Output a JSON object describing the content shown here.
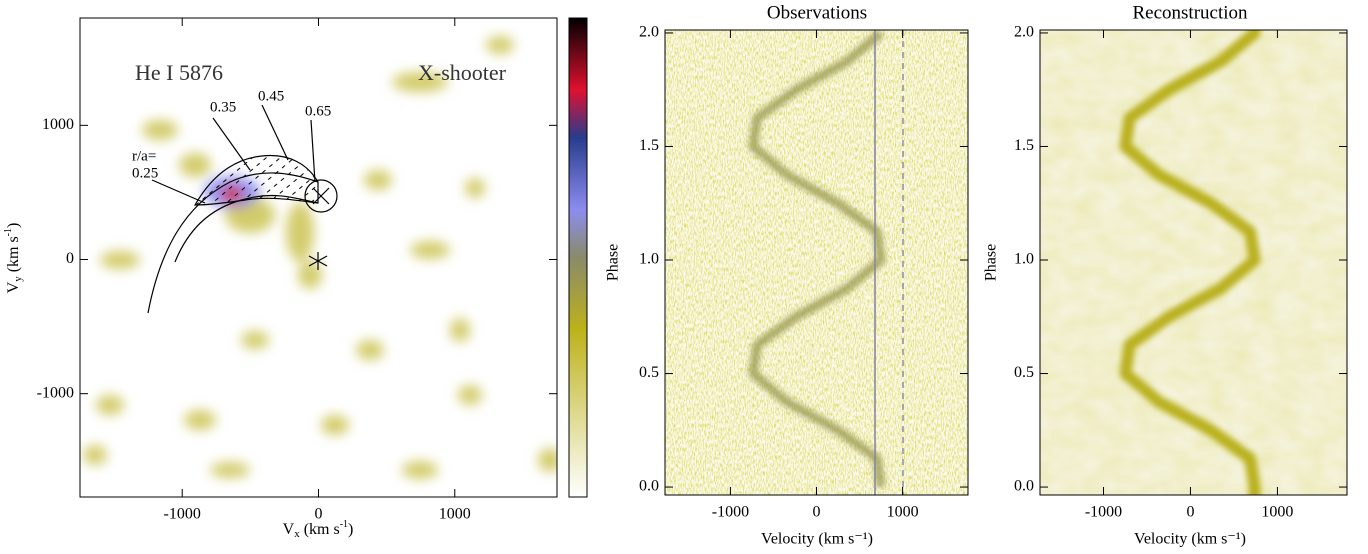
{
  "chart_data": [
    {
      "type": "heatmap",
      "annotations": [
        "He I 5876",
        "X-shooter",
        "r/a=",
        "0.25",
        "0.35",
        "0.45",
        "0.65"
      ],
      "xlabel": {
        "text": "V",
        "sub": "x",
        "unit": " (km s",
        "sup": "-1",
        "end": ")"
      },
      "ylabel": {
        "text": "V",
        "sub": "y",
        "unit": " (km s",
        "sup": "-1",
        "end": ")"
      },
      "xlim": [
        -1750,
        1750
      ],
      "ylim": [
        -1770,
        1800
      ],
      "xticks": [
        -1000,
        0,
        1000
      ],
      "yticks": [
        -1000,
        0,
        1000
      ]
    },
    {
      "type": "heatmap",
      "title": "Observations",
      "xlabel": "Velocity (km s⁻¹)",
      "ylabel": "Phase",
      "xlim": [
        -1760,
        1760
      ],
      "ylim": [
        -0.035,
        2.013
      ],
      "xticks": [
        -1000,
        0,
        1000
      ],
      "yticks": [
        {
          "value": 0,
          "label": "0.0"
        },
        0.5,
        {
          "value": 1,
          "label": "1.0"
        },
        1.5,
        {
          "value": 2,
          "label": "2.0"
        }
      ]
    },
    {
      "type": "heatmap",
      "title": "Reconstruction",
      "xlabel": "Velocity (km s⁻¹)",
      "ylabel": "Phase",
      "xlim": [
        -1730,
        1800
      ],
      "ylim": [
        -0.035,
        2.013
      ],
      "xticks": [
        -1000,
        0,
        1000
      ],
      "yticks": [
        {
          "value": 0,
          "label": "0.0"
        },
        0.5,
        {
          "value": 1,
          "label": "1.0"
        },
        1.5,
        {
          "value": 2,
          "label": "2.0"
        }
      ]
    }
  ]
}
